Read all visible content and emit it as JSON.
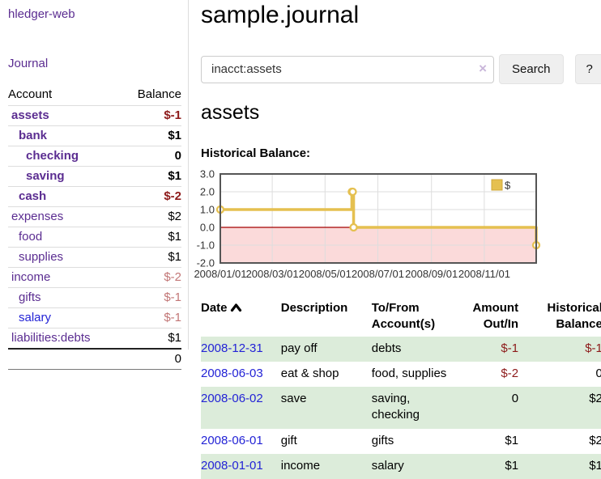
{
  "brand": {
    "label": "hledger-web"
  },
  "sidebar": {
    "journal_link": "Journal",
    "accounts": {
      "header_account": "Account",
      "header_balance": "Balance",
      "rows": [
        {
          "name": "assets",
          "balance": "$-1",
          "depth": 0,
          "bold": true,
          "amount_tone": "negative-strong",
          "link_color": "purple"
        },
        {
          "name": "bank",
          "balance": "$1",
          "depth": 1,
          "bold": true,
          "amount_tone": "normal",
          "link_color": "purple"
        },
        {
          "name": "checking",
          "balance": "0",
          "depth": 2,
          "bold": true,
          "amount_tone": "normal",
          "link_color": "purple"
        },
        {
          "name": "saving",
          "balance": "$1",
          "depth": 2,
          "bold": true,
          "amount_tone": "normal",
          "link_color": "purple"
        },
        {
          "name": "cash",
          "balance": "$-2",
          "depth": 1,
          "bold": true,
          "amount_tone": "negative-strong",
          "link_color": "purple"
        },
        {
          "name": "expenses",
          "balance": "$2",
          "depth": 0,
          "bold": false,
          "amount_tone": "normal",
          "link_color": "purple"
        },
        {
          "name": "food",
          "balance": "$1",
          "depth": 1,
          "bold": false,
          "amount_tone": "normal",
          "link_color": "purple"
        },
        {
          "name": "supplies",
          "balance": "$1",
          "depth": 1,
          "bold": false,
          "amount_tone": "normal",
          "link_color": "purple"
        },
        {
          "name": "income",
          "balance": "$-2",
          "depth": 0,
          "bold": false,
          "amount_tone": "negative-soft",
          "link_color": "purple"
        },
        {
          "name": "gifts",
          "balance": "$-1",
          "depth": 1,
          "bold": false,
          "amount_tone": "negative-soft",
          "link_color": "purple"
        },
        {
          "name": "salary",
          "balance": "$-1",
          "depth": 1,
          "bold": false,
          "amount_tone": "negative-soft",
          "link_color": "blue"
        },
        {
          "name": "liabilities:debts",
          "balance": "$1",
          "depth": 0,
          "bold": false,
          "amount_tone": "normal",
          "link_color": "purple"
        }
      ],
      "total": "0"
    }
  },
  "main": {
    "title": "sample.journal",
    "search": {
      "value": "inacct:assets",
      "clear_icon": "×",
      "search_button": "Search",
      "help_button": "?"
    },
    "account_heading": "assets",
    "section_label": "Historical Balance:"
  },
  "chart_data": {
    "type": "line",
    "line_style": "step-after",
    "title": "Historical Balance",
    "series": [
      {
        "name": "$",
        "color": "#e5c050",
        "points": [
          [
            "2008-01-01",
            1.0
          ],
          [
            "2008-06-01",
            2.0
          ],
          [
            "2008-06-02",
            2.0
          ],
          [
            "2008-06-03",
            0.0
          ],
          [
            "2008-12-31",
            -1.0
          ]
        ]
      }
    ],
    "x_domain": [
      "2008-01-01",
      "2008-12-31"
    ],
    "ylim": [
      -2.0,
      3.0
    ],
    "yticks": [
      "3.0",
      "2.0",
      "1.0",
      "0.0",
      "-1.0",
      "-2.0"
    ],
    "xticks": [
      {
        "date": "2008-01-01",
        "label": "2008/01/01"
      },
      {
        "date": "2008-03-01",
        "label": "2008/03/01"
      },
      {
        "date": "2008-05-01",
        "label": "2008/05/01"
      },
      {
        "date": "2008-07-01",
        "label": "2008/07/01"
      },
      {
        "date": "2008-09-01",
        "label": "2008/09/01"
      },
      {
        "date": "2008-11-01",
        "label": "2008/11/01"
      }
    ],
    "legend": {
      "label": "$",
      "position": "top-right"
    },
    "grid": true,
    "negative_region_color": "#fbdada",
    "zero_line_color": "#a40000",
    "grid_color": "#ddd",
    "border_color": "#555"
  },
  "register": {
    "headers": {
      "date": "Date",
      "sort_ascending": true,
      "description": "Description",
      "accounts": "To/From Account(s)",
      "amount": "Amount Out/In",
      "balance": "Historical Balance"
    },
    "rows": [
      {
        "date": "2008-12-31",
        "description": "pay off",
        "accounts": "debts",
        "amount": "$-1",
        "amount_tone": "negative",
        "balance": "$-1",
        "balance_tone": "negative"
      },
      {
        "date": "2008-06-03",
        "description": "eat & shop",
        "accounts": "food, supplies",
        "amount": "$-2",
        "amount_tone": "negative",
        "balance": "0",
        "balance_tone": "normal"
      },
      {
        "date": "2008-06-02",
        "description": "save",
        "accounts": "saving, checking",
        "amount": "0",
        "amount_tone": "normal",
        "balance": "$2",
        "balance_tone": "normal"
      },
      {
        "date": "2008-06-01",
        "description": "gift",
        "accounts": "gifts",
        "amount": "$1",
        "amount_tone": "normal",
        "balance": "$2",
        "balance_tone": "normal"
      },
      {
        "date": "2008-01-01",
        "description": "income",
        "accounts": "salary",
        "amount": "$1",
        "amount_tone": "normal",
        "balance": "$1",
        "balance_tone": "normal"
      }
    ]
  },
  "colors": {
    "accent_purple": "#5b2d91",
    "link_blue": "#2323d6",
    "negative_strong": "#8d1a1a",
    "negative_soft": "#c27676",
    "row_stripe_green": "#dcecda",
    "chart_line": "#e5c050",
    "chart_negative_fill": "#fbdada",
    "zero_line": "#a40000"
  }
}
